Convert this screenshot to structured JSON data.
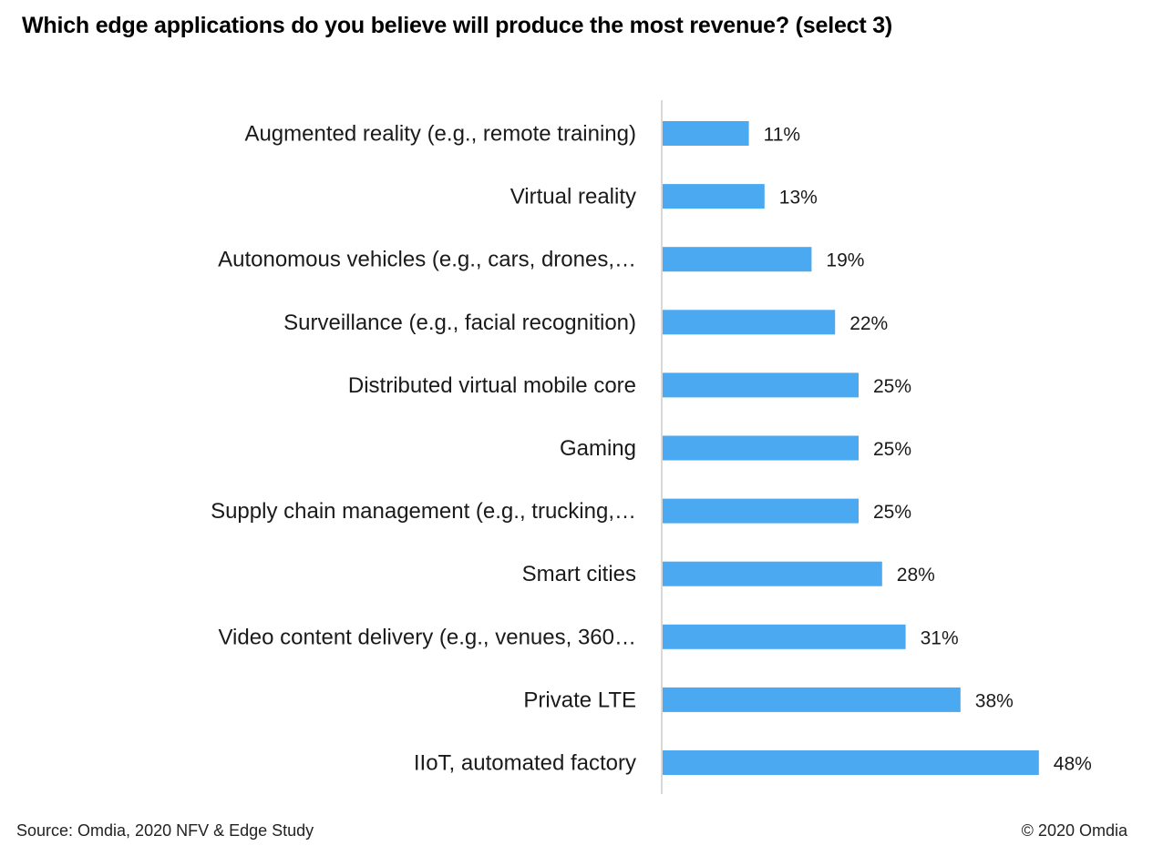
{
  "chart_data": {
    "type": "bar",
    "orientation": "horizontal",
    "title": "Which edge applications do you believe will produce the most revenue? (select 3)",
    "xlabel": "",
    "ylabel": "",
    "categories": [
      "Augmented reality (e.g., remote training)",
      "Virtual reality",
      "Autonomous vehicles (e.g., cars, drones,…",
      "Surveillance (e.g., facial recognition)",
      "Distributed virtual mobile core",
      "Gaming",
      "Supply chain management (e.g., trucking,…",
      "Smart cities",
      "Video content delivery (e.g., venues, 360…",
      "Private LTE",
      "IIoT, automated factory"
    ],
    "values": [
      11,
      13,
      19,
      22,
      25,
      25,
      25,
      28,
      31,
      38,
      48
    ],
    "value_labels": [
      "11%",
      "13%",
      "19%",
      "22%",
      "25%",
      "25%",
      "25%",
      "28%",
      "31%",
      "38%",
      "48%"
    ],
    "unit": "%",
    "xlim": [
      0,
      55
    ],
    "grid": false,
    "legend": "none",
    "bar_color": "#4BA9F2",
    "axis_color": "#d9d9d9"
  },
  "footer": {
    "source": "Source: Omdia, 2020 NFV & Edge Study",
    "copyright": "© 2020 Omdia"
  }
}
